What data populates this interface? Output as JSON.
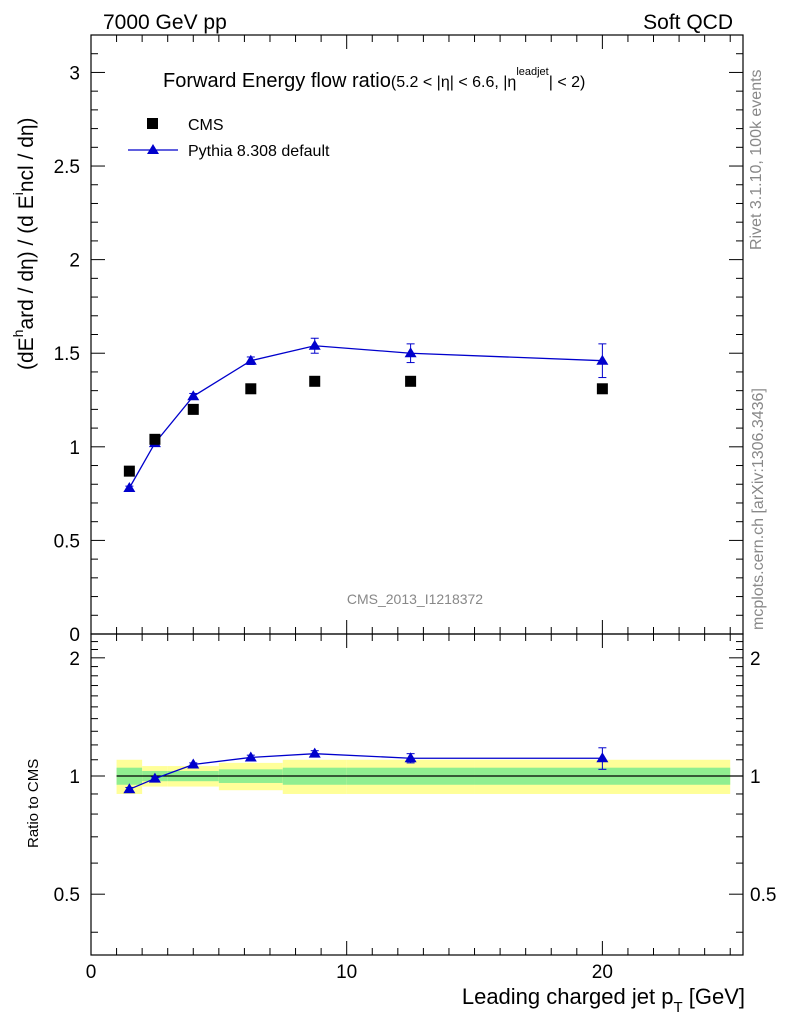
{
  "header": {
    "left": "7000 GeV pp",
    "right": "Soft QCD"
  },
  "side_text": {
    "rivet": "Rivet 3.1.10,  100k events",
    "mcplots": "mcplots.cern.ch [arXiv:1306.3436]"
  },
  "colors": {
    "pythia": "#0000cc",
    "cms": "#000000",
    "band_inner": "#90ee90",
    "band_outer": "#ffff99"
  },
  "chart_data": [
    {
      "type": "scatter",
      "title": "Forward Energy flow ratio",
      "title_cut": "(5.2 < |η| < 6.6, |η",
      "title_cut_sup": "leadjet",
      "title_cut_end": "| < 2)",
      "analysis_tag": "CMS_2013_I1218372",
      "ylabel_main": "(dE",
      "ylabel_sup": "h",
      "ylabel_rest": "ard / dη) / (d E",
      "ylabel_sup2": "i",
      "ylabel_end": "ncl / dη)",
      "xlim": [
        0,
        25.5
      ],
      "ylim": [
        0,
        3.2
      ],
      "yticks": [
        0,
        0.5,
        1,
        1.5,
        2,
        2.5,
        3
      ],
      "ytick_labels": [
        "0",
        "0.5",
        "1",
        "1.5",
        "2",
        "2.5",
        "3"
      ],
      "legend_position": "top-left",
      "series": [
        {
          "name": "CMS",
          "marker": "square",
          "x": [
            1.5,
            2.5,
            4.0,
            6.25,
            8.75,
            12.5,
            20.0
          ],
          "y": [
            0.87,
            1.04,
            1.2,
            1.31,
            1.35,
            1.35,
            1.31
          ],
          "yerr": [
            0,
            0,
            0,
            0,
            0,
            0,
            0
          ]
        },
        {
          "name": "Pythia 8.308 default",
          "marker": "triangle",
          "line": true,
          "x": [
            1.5,
            2.5,
            4.0,
            6.25,
            8.75,
            12.5,
            20.0
          ],
          "y": [
            0.78,
            1.02,
            1.27,
            1.46,
            1.54,
            1.5,
            1.46
          ],
          "yerr": [
            0.01,
            0.01,
            0.015,
            0.02,
            0.04,
            0.05,
            0.09
          ]
        }
      ]
    },
    {
      "type": "scatter",
      "ylabel": "Ratio to CMS",
      "xlabel": "Leading charged jet p",
      "xlabel_sub": "T",
      "xlabel_unit": " [GeV]",
      "xlim": [
        0,
        25.5
      ],
      "ylim": [
        0.35,
        2.3
      ],
      "xticks": [
        0,
        10,
        20
      ],
      "xtick_labels": [
        "0",
        "10",
        "20"
      ],
      "yticks": [
        0.5,
        1,
        2
      ],
      "ytick_labels": [
        "0.5",
        "1",
        "2"
      ],
      "bands": {
        "edges": [
          1.0,
          2.0,
          3.0,
          5.0,
          7.5,
          10.0,
          15.0,
          25.0
        ],
        "inner": [
          0.05,
          0.03,
          0.03,
          0.04,
          0.05,
          0.05,
          0.05
        ],
        "outer": [
          0.1,
          0.06,
          0.06,
          0.08,
          0.1,
          0.1,
          0.1
        ]
      },
      "series": [
        {
          "name": "Pythia 8.308 default",
          "x": [
            1.5,
            2.5,
            4.0,
            6.25,
            8.75,
            12.5,
            20.0
          ],
          "y": [
            0.925,
            0.985,
            1.07,
            1.115,
            1.14,
            1.11,
            1.11
          ],
          "yerr": [
            0.01,
            0.01,
            0.01,
            0.015,
            0.02,
            0.03,
            0.07
          ]
        }
      ]
    }
  ]
}
